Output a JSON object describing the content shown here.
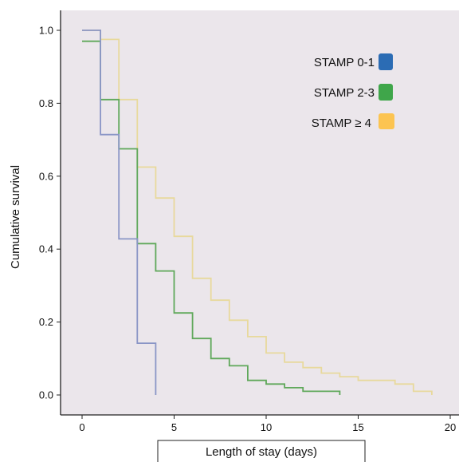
{
  "chart_data": {
    "type": "line",
    "subtype": "kaplan-meier step",
    "title": "",
    "xlabel": "Length of stay (days)",
    "ylabel": "Cumulative survival",
    "xlim": [
      0,
      20
    ],
    "ylim": [
      0,
      1
    ],
    "x_ticks": [
      "0",
      "5",
      "10",
      "15",
      "20"
    ],
    "y_ticks": [
      "0.0",
      "0.2",
      "0.4",
      "0.6",
      "0.8",
      "1.0"
    ],
    "x_tick_values": [
      0,
      5,
      10,
      15,
      20
    ],
    "y_tick_values": [
      0,
      0.2,
      0.4,
      0.6,
      0.8,
      1.0
    ],
    "grid": false,
    "background": "#ebe6eb",
    "legend_position": "top-right",
    "series": [
      {
        "name": "STAMP 0-1",
        "line_color": "#8a95c6",
        "swatch_color": "#2b6cb4",
        "points": [
          [
            0,
            1.0
          ],
          [
            1,
            1.0
          ],
          [
            1,
            0.714
          ],
          [
            2,
            0.714
          ],
          [
            2,
            0.428
          ],
          [
            3,
            0.428
          ],
          [
            3,
            0.142
          ],
          [
            4,
            0.142
          ],
          [
            4,
            0.0
          ]
        ]
      },
      {
        "name": "STAMP 2-3",
        "line_color": "#5fa85a",
        "swatch_color": "#3fa64a",
        "points": [
          [
            0,
            0.97
          ],
          [
            1,
            0.97
          ],
          [
            1,
            0.81
          ],
          [
            2,
            0.81
          ],
          [
            2,
            0.675
          ],
          [
            3,
            0.675
          ],
          [
            3,
            0.415
          ],
          [
            4,
            0.415
          ],
          [
            4,
            0.34
          ],
          [
            5,
            0.34
          ],
          [
            5,
            0.225
          ],
          [
            6,
            0.225
          ],
          [
            6,
            0.155
          ],
          [
            7,
            0.155
          ],
          [
            7,
            0.1
          ],
          [
            8,
            0.1
          ],
          [
            8,
            0.08
          ],
          [
            9,
            0.08
          ],
          [
            9,
            0.04
          ],
          [
            10,
            0.04
          ],
          [
            10,
            0.03
          ],
          [
            11,
            0.03
          ],
          [
            11,
            0.02
          ],
          [
            12,
            0.02
          ],
          [
            12,
            0.01
          ],
          [
            14,
            0.01
          ],
          [
            14,
            0.0
          ]
        ]
      },
      {
        "name": "STAMP ≥ 4",
        "line_color": "#e8d99c",
        "swatch_color": "#fcc451",
        "points": [
          [
            0,
            1.0
          ],
          [
            1,
            1.0
          ],
          [
            1,
            0.975
          ],
          [
            2,
            0.975
          ],
          [
            2,
            0.81
          ],
          [
            3,
            0.81
          ],
          [
            3,
            0.625
          ],
          [
            4,
            0.625
          ],
          [
            4,
            0.54
          ],
          [
            5,
            0.54
          ],
          [
            5,
            0.435
          ],
          [
            6,
            0.435
          ],
          [
            6,
            0.32
          ],
          [
            7,
            0.32
          ],
          [
            7,
            0.26
          ],
          [
            8,
            0.26
          ],
          [
            8,
            0.205
          ],
          [
            9,
            0.205
          ],
          [
            9,
            0.16
          ],
          [
            10,
            0.16
          ],
          [
            10,
            0.115
          ],
          [
            11,
            0.115
          ],
          [
            11,
            0.09
          ],
          [
            12,
            0.09
          ],
          [
            12,
            0.075
          ],
          [
            13,
            0.075
          ],
          [
            13,
            0.06
          ],
          [
            14,
            0.06
          ],
          [
            14,
            0.05
          ],
          [
            15,
            0.05
          ],
          [
            15,
            0.04
          ],
          [
            17,
            0.04
          ],
          [
            17,
            0.03
          ],
          [
            18,
            0.03
          ],
          [
            18,
            0.01
          ],
          [
            19,
            0.01
          ],
          [
            19,
            0.0
          ]
        ]
      }
    ]
  }
}
